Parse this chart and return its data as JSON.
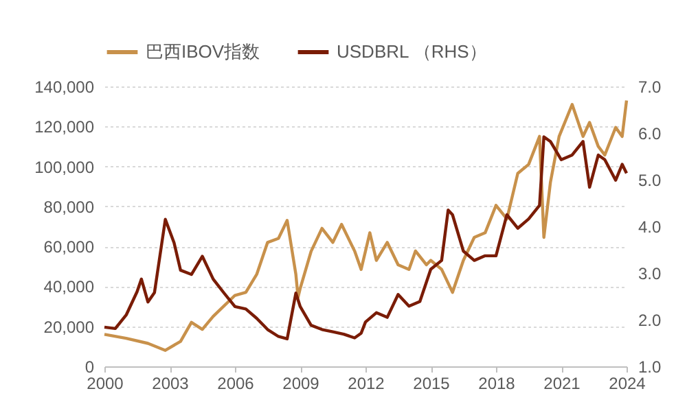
{
  "chart_data": {
    "type": "line",
    "legend": "top",
    "grid": "y",
    "xlim": [
      2000,
      2024
    ],
    "xticks": [
      2000,
      2003,
      2006,
      2009,
      2012,
      2015,
      2018,
      2021,
      2024
    ],
    "ylim": [
      0,
      140000
    ],
    "yticks": [
      0,
      {
        "value": 20000,
        "label": "20,000"
      },
      {
        "value": 40000,
        "label": "40,000"
      },
      {
        "value": 60000,
        "label": "60,000"
      },
      {
        "value": 80000,
        "label": "80,000"
      },
      {
        "value": 100000,
        "label": "100,000"
      },
      {
        "value": 120000,
        "label": "120,000"
      },
      {
        "value": 140000,
        "label": "140,000"
      }
    ],
    "y2lim": [
      1,
      7
    ],
    "y2ticks": [
      {
        "value": 1,
        "label": "1.0"
      },
      {
        "value": 2,
        "label": "2.0"
      },
      {
        "value": 3,
        "label": "3.0"
      },
      {
        "value": 4,
        "label": "4.0"
      },
      {
        "value": 5,
        "label": "5.0"
      },
      {
        "value": 6,
        "label": "6.0"
      },
      {
        "value": 7,
        "label": "7.0"
      }
    ],
    "series": [
      {
        "name": "巴西IBOV指数",
        "color": "#c8914b",
        "x": [
          2000,
          2001,
          2002,
          2002.8,
          2003.5,
          2004,
          2004.5,
          2005,
          2006,
          2006.5,
          2007,
          2007.5,
          2008,
          2008.4,
          2008.8,
          2008.9,
          2009,
          2009.5,
          2010,
          2010.5,
          2010.9,
          2011.5,
          2011.8,
          2012.2,
          2012.5,
          2013,
          2013.5,
          2014,
          2014.3,
          2014.8,
          2015,
          2015.5,
          2016,
          2016.5,
          2017,
          2017.5,
          2018,
          2018.5,
          2019,
          2019.5,
          2020,
          2020.2,
          2020.5,
          2020.9,
          2021.5,
          2022,
          2022.3,
          2022.7,
          2023,
          2023.5,
          2023.8,
          2024
        ],
        "values": [
          16000,
          14000,
          11500,
          8000,
          12500,
          22000,
          18500,
          25000,
          35500,
          37000,
          46000,
          62000,
          64000,
          73000,
          46000,
          34500,
          39000,
          57500,
          69000,
          62000,
          71000,
          57700,
          48500,
          66800,
          53000,
          62000,
          50800,
          48500,
          57700,
          50800,
          53000,
          48500,
          37000,
          53000,
          64500,
          66800,
          80500,
          73700,
          96500,
          101000,
          115000,
          64500,
          92000,
          115000,
          131000,
          115000,
          122000,
          110000,
          105700,
          119500,
          115000,
          133000
        ]
      },
      {
        "name": "USDBRL （RHS）",
        "color": "#7a1c06",
        "axis": "y2",
        "x": [
          2000,
          2000.5,
          2001,
          2001.5,
          2001.7,
          2002,
          2002.3,
          2002.8,
          2003.2,
          2003.5,
          2004,
          2004.5,
          2005,
          2005.5,
          2006,
          2006.5,
          2007,
          2007.5,
          2008,
          2008.4,
          2008.8,
          2009,
          2009.5,
          2010,
          2010.5,
          2011,
          2011.5,
          2011.8,
          2012,
          2012.5,
          2013,
          2013.5,
          2014,
          2014.5,
          2015,
          2015.5,
          2015.8,
          2016,
          2016.5,
          2017,
          2017.5,
          2018,
          2018.5,
          2019,
          2019.5,
          2020,
          2020.2,
          2020.5,
          2021,
          2021.5,
          2022,
          2022.3,
          2022.7,
          2023,
          2023.5,
          2023.8,
          2024
        ],
        "values": [
          1.84,
          1.81,
          2.1,
          2.6,
          2.87,
          2.38,
          2.58,
          4.15,
          3.65,
          3.06,
          2.97,
          3.36,
          2.87,
          2.57,
          2.28,
          2.23,
          2.03,
          1.79,
          1.64,
          1.59,
          2.57,
          2.28,
          1.88,
          1.79,
          1.74,
          1.69,
          1.61,
          1.71,
          1.95,
          2.15,
          2.05,
          2.54,
          2.29,
          2.39,
          3.08,
          3.27,
          4.35,
          4.25,
          3.47,
          3.27,
          3.37,
          3.37,
          4.25,
          3.96,
          4.16,
          4.45,
          5.92,
          5.82,
          5.43,
          5.53,
          5.82,
          4.84,
          5.53,
          5.43,
          4.99,
          5.33,
          5.14
        ]
      }
    ]
  }
}
